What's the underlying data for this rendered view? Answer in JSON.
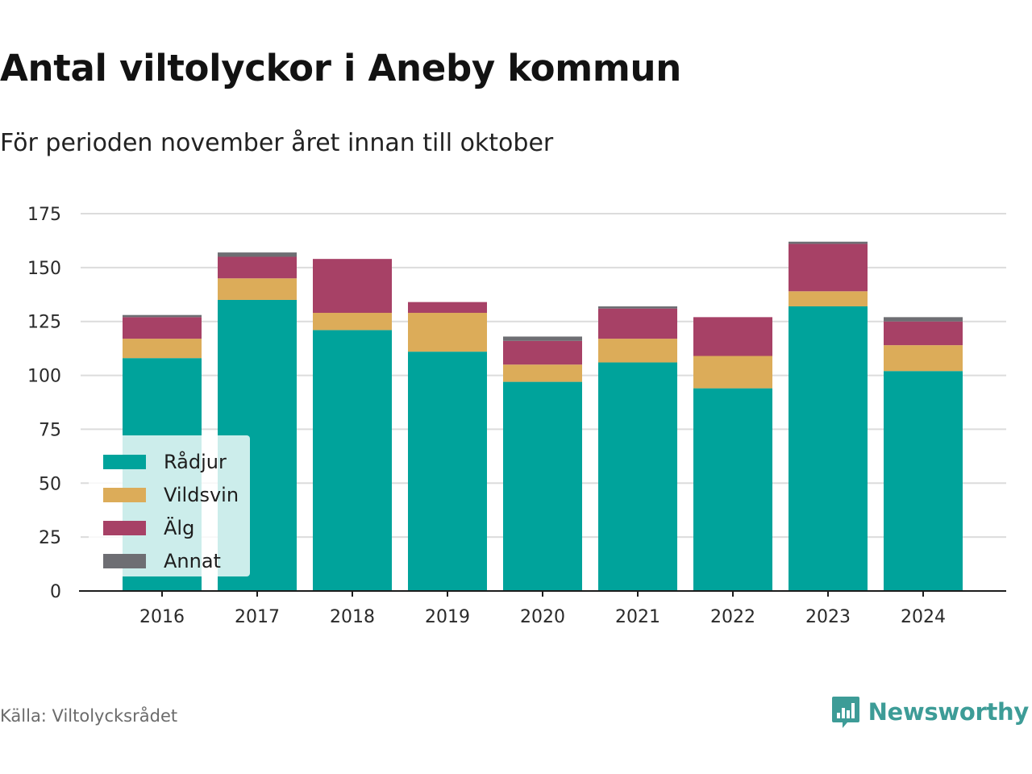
{
  "header": {
    "title": "Antal viltolyckor i Aneby kommun",
    "subtitle": "För perioden november året innan till oktober"
  },
  "footer": {
    "source": "Källa: Viltolycksrådet",
    "brand": "Newsworthy",
    "brand_icon": "bar-chart-speech-bubble-icon",
    "brand_color": "#3d9c97"
  },
  "chart_data": {
    "type": "bar",
    "stacked": true,
    "title": "Antal viltolyckor i Aneby kommun",
    "subtitle": "För perioden november året innan till oktober",
    "xlabel": "",
    "ylabel": "",
    "categories": [
      "2016",
      "2017",
      "2018",
      "2019",
      "2020",
      "2021",
      "2022",
      "2023",
      "2024"
    ],
    "series": [
      {
        "name": "Rådjur",
        "color": "#00a39b",
        "values": [
          108,
          135,
          121,
          111,
          97,
          106,
          94,
          132,
          102
        ]
      },
      {
        "name": "Vildsvin",
        "color": "#dcac59",
        "values": [
          9,
          10,
          8,
          18,
          8,
          11,
          15,
          7,
          12
        ]
      },
      {
        "name": "Älg",
        "color": "#a74166",
        "values": [
          10,
          10,
          25,
          5,
          11,
          14,
          18,
          22,
          11
        ]
      },
      {
        "name": "Annat",
        "color": "#6e6e73",
        "values": [
          1,
          2,
          0,
          0,
          2,
          1,
          0,
          1,
          2
        ]
      }
    ],
    "ylim": [
      0,
      175
    ],
    "yticks": [
      0,
      25,
      50,
      75,
      100,
      125,
      150,
      175
    ],
    "grid": true,
    "legend_position": "bottom-left"
  }
}
